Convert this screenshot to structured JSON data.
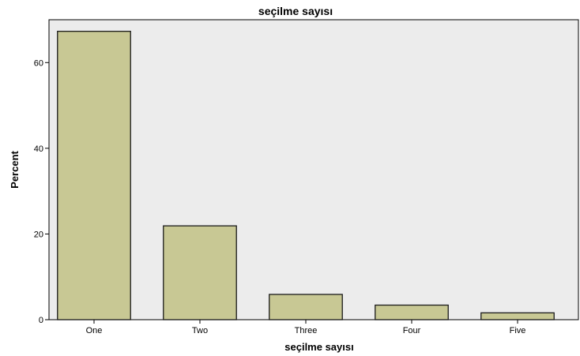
{
  "chart_data": {
    "type": "bar",
    "title": "seçilme sayısı",
    "xlabel": "seçilme sayısı",
    "ylabel": "Percent",
    "categories": [
      "One",
      "Two",
      "Three",
      "Four",
      "Five"
    ],
    "values": [
      67.3,
      21.9,
      5.9,
      3.4,
      1.6
    ],
    "ylim": [
      0,
      70
    ],
    "yticks": [
      0,
      20,
      40,
      60
    ],
    "grid": false,
    "colors": {
      "plot_background": "#ececec",
      "bar_fill": "#c8c894",
      "bar_stroke": "#1a1a1a"
    }
  }
}
